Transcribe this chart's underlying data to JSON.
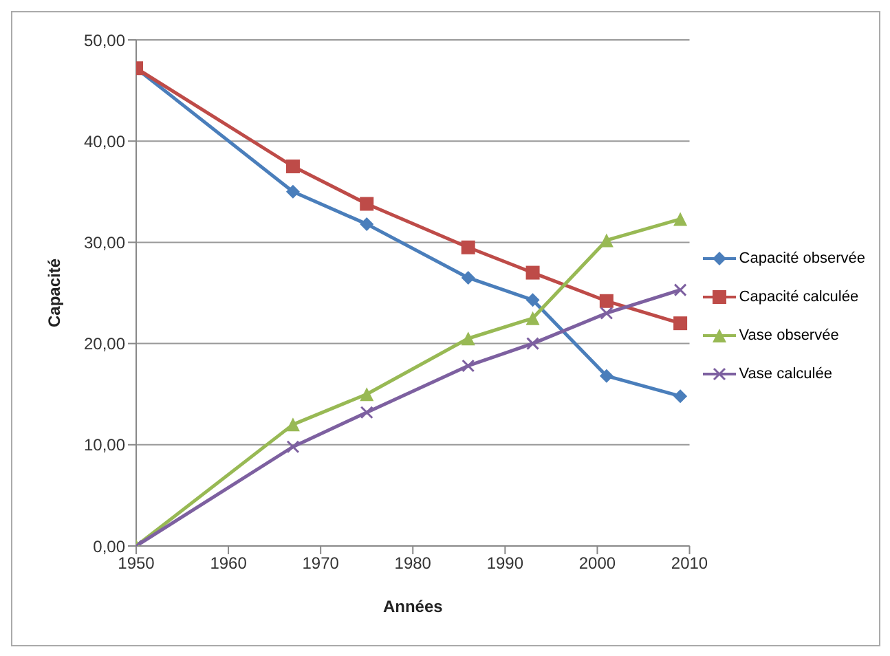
{
  "chart_data": {
    "type": "line",
    "xlabel": "Années",
    "ylabel": "Capacité",
    "x": [
      1950,
      1967,
      1975,
      1986,
      1993,
      2001,
      2009
    ],
    "series": [
      {
        "name": "Capacité observée",
        "color": "#4a7ebb",
        "marker": "diamond",
        "values": [
          47.2,
          35,
          31.8,
          26.5,
          24.3,
          16.8,
          14.8
        ]
      },
      {
        "name": "Capacité calculée",
        "color": "#be4b48",
        "marker": "square",
        "values": [
          47.2,
          37.5,
          33.8,
          29.5,
          27,
          24.2,
          22
        ]
      },
      {
        "name": "Vase observée",
        "color": "#98b954",
        "marker": "triangle",
        "values": [
          0,
          12,
          15,
          20.5,
          22.5,
          30.2,
          32.3
        ]
      },
      {
        "name": "Vase calculée",
        "color": "#7d60a0",
        "marker": "cross",
        "values": [
          0,
          9.8,
          13.2,
          17.8,
          20,
          23,
          25.3
        ]
      }
    ],
    "xlim": [
      1950,
      2010
    ],
    "xticks": [
      1950,
      1960,
      1970,
      1980,
      1990,
      2000,
      2010
    ],
    "ylim": [
      0,
      50
    ],
    "yticks": [
      {
        "value": 0,
        "label": "0,00"
      },
      {
        "value": 10,
        "label": "10,00"
      },
      {
        "value": 20,
        "label": "20,00"
      },
      {
        "value": 30,
        "label": "30,00"
      },
      {
        "value": 40,
        "label": "40,00"
      },
      {
        "value": 50,
        "label": "50,00"
      }
    ],
    "grid": "y",
    "legend": "right"
  }
}
